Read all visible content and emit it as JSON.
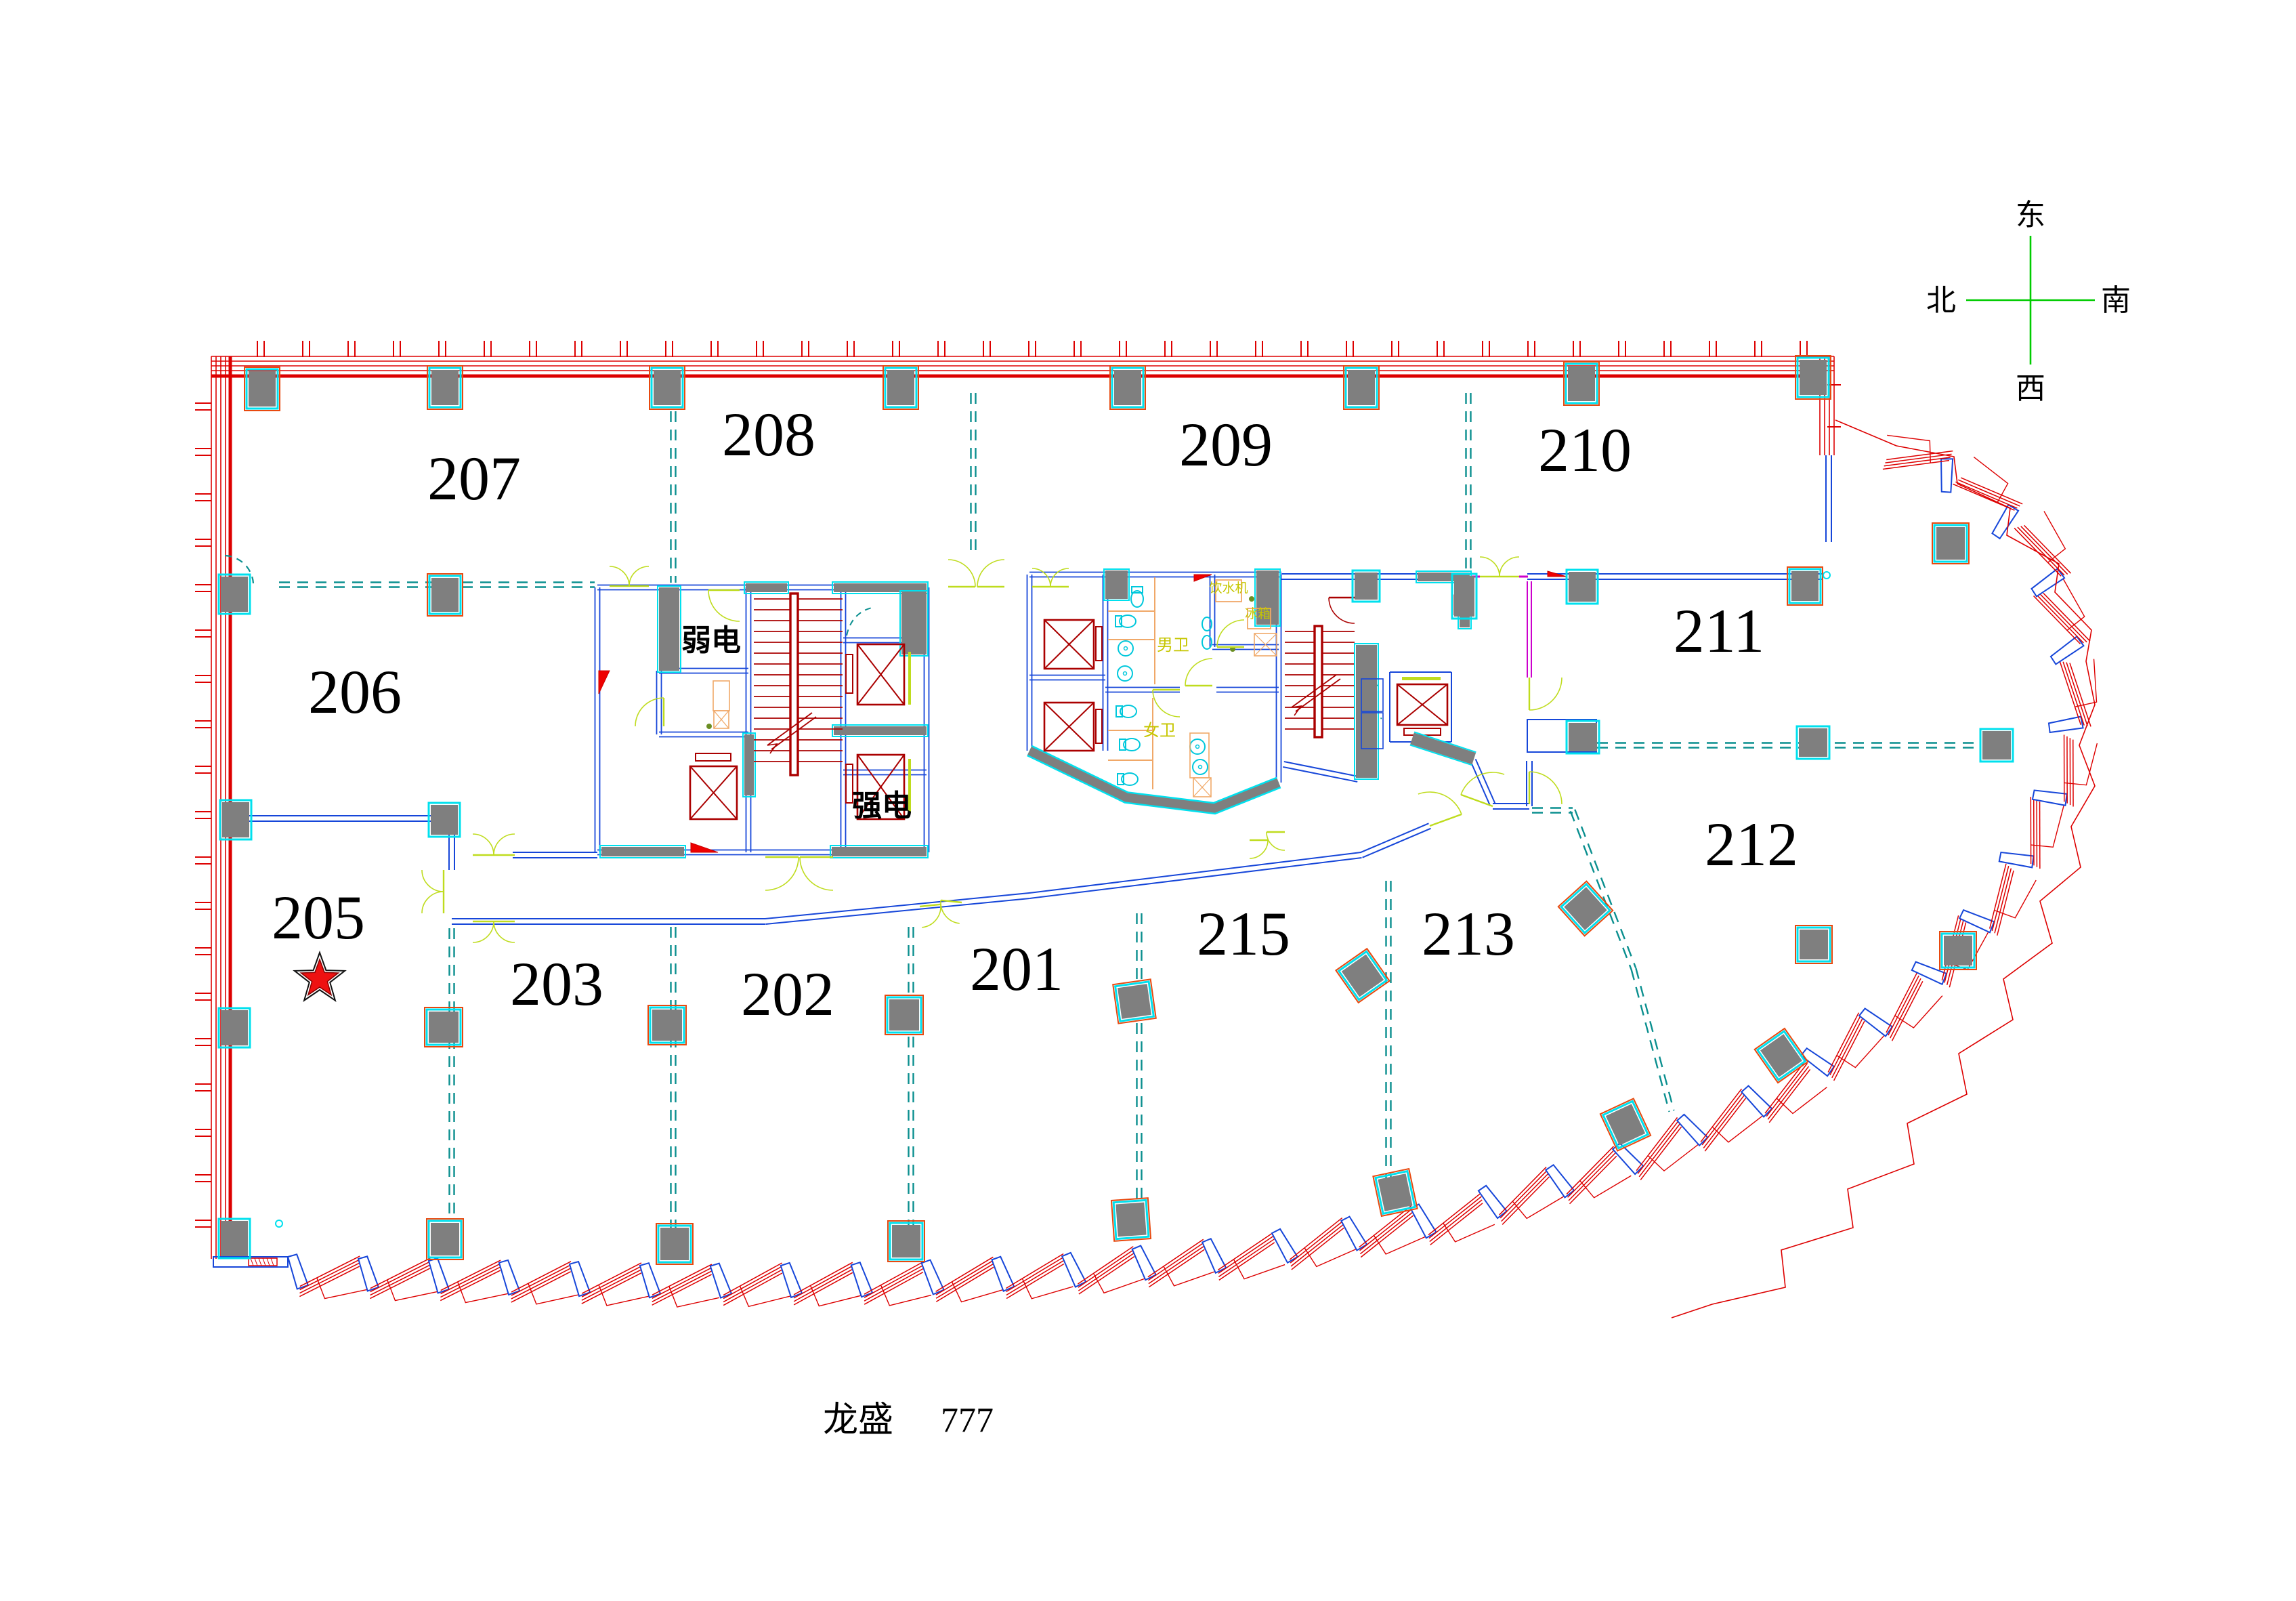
{
  "title": {
    "name": "龙盛",
    "number": "777"
  },
  "compass": {
    "top": "东",
    "left": "北",
    "right": "南",
    "bottom": "西"
  },
  "rooms": [
    {
      "id": "201",
      "label": "201"
    },
    {
      "id": "202",
      "label": "202"
    },
    {
      "id": "203",
      "label": "203"
    },
    {
      "id": "205",
      "label": "205",
      "marked": true
    },
    {
      "id": "206",
      "label": "206"
    },
    {
      "id": "207",
      "label": "207"
    },
    {
      "id": "208",
      "label": "208"
    },
    {
      "id": "209",
      "label": "209"
    },
    {
      "id": "210",
      "label": "210"
    },
    {
      "id": "211",
      "label": "211"
    },
    {
      "id": "212",
      "label": "212"
    },
    {
      "id": "213",
      "label": "213"
    },
    {
      "id": "215",
      "label": "215"
    }
  ],
  "core_rooms": [
    {
      "id": "weak-power",
      "label": "弱电"
    },
    {
      "id": "strong-power",
      "label": "强电"
    }
  ],
  "amenities": [
    {
      "id": "mens-wc",
      "label": "男卫"
    },
    {
      "id": "womens-wc",
      "label": "女卫"
    },
    {
      "id": "water-dispenser",
      "label": "饮水机"
    },
    {
      "id": "fridge",
      "label": "冰箱"
    }
  ],
  "marker": {
    "room": "205",
    "type": "red-star"
  },
  "colors": {
    "facade_red": "#dd0000",
    "wall_blue": "#1646d9",
    "partition_teal": "#0a8f8f",
    "door_lime": "#bfdc1e",
    "column_gray": "#7f7f7f",
    "column_cyan": "#00e0ee",
    "column_orange": "#e8490f",
    "stair_red": "#aa0000",
    "fixture_tan": "#f0a868",
    "fixture_cyan": "#00c8dc",
    "magenta": "#cc00cc",
    "compass_green": "#00cc00",
    "amenity_yellow": "#c6c600",
    "star_red": "#ee1111"
  }
}
